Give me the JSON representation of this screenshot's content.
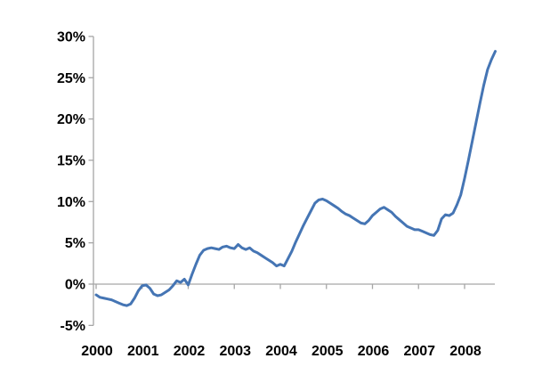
{
  "chart_data": {
    "type": "line",
    "title": "",
    "xlabel": "",
    "ylabel": "",
    "x_unit": "monthly",
    "x_start": "2000-01",
    "x_end": "2008-09",
    "categories": [
      "2000",
      "2001",
      "2002",
      "2003",
      "2004",
      "2005",
      "2006",
      "2007",
      "2008"
    ],
    "y_tick_labels": [
      "30%",
      "25%",
      "20%",
      "15%",
      "10%",
      "5%",
      "0%",
      "-5%"
    ],
    "y_tick_values": [
      30,
      25,
      20,
      15,
      10,
      5,
      0,
      -5
    ],
    "ylim": [
      -5,
      30
    ],
    "y_step": 5,
    "grid": "off",
    "legend": "none",
    "zero_line": true,
    "axis_color": "#a6a6a6",
    "label_color": "#000000",
    "series": [
      {
        "name": "percent-series",
        "color": "#4575b4",
        "stroke_width": 3,
        "values": [
          -1.3,
          -1.6,
          -1.7,
          -1.8,
          -1.9,
          -2.1,
          -2.3,
          -2.5,
          -2.6,
          -2.4,
          -1.7,
          -0.8,
          -0.2,
          -0.1,
          -0.5,
          -1.2,
          -1.4,
          -1.3,
          -1.0,
          -0.7,
          -0.2,
          0.4,
          0.2,
          0.6,
          -0.1,
          1.2,
          2.4,
          3.5,
          4.1,
          4.3,
          4.4,
          4.3,
          4.2,
          4.5,
          4.6,
          4.4,
          4.3,
          4.8,
          4.4,
          4.2,
          4.4,
          4.0,
          3.8,
          3.5,
          3.2,
          2.9,
          2.6,
          2.2,
          2.4,
          2.2,
          3.1,
          4.0,
          5.1,
          6.1,
          7.1,
          8.0,
          8.9,
          9.8,
          10.2,
          10.3,
          10.1,
          9.8,
          9.5,
          9.2,
          8.8,
          8.5,
          8.3,
          8.0,
          7.7,
          7.4,
          7.3,
          7.7,
          8.3,
          8.7,
          9.1,
          9.3,
          9.0,
          8.7,
          8.2,
          7.8,
          7.4,
          7.0,
          6.8,
          6.6,
          6.6,
          6.4,
          6.2,
          6.0,
          5.9,
          6.5,
          7.9,
          8.4,
          8.3,
          8.6,
          9.6,
          10.8,
          12.8,
          15.0,
          17.3,
          19.6,
          21.9,
          24.1,
          26.0,
          27.2,
          28.2
        ]
      }
    ]
  }
}
